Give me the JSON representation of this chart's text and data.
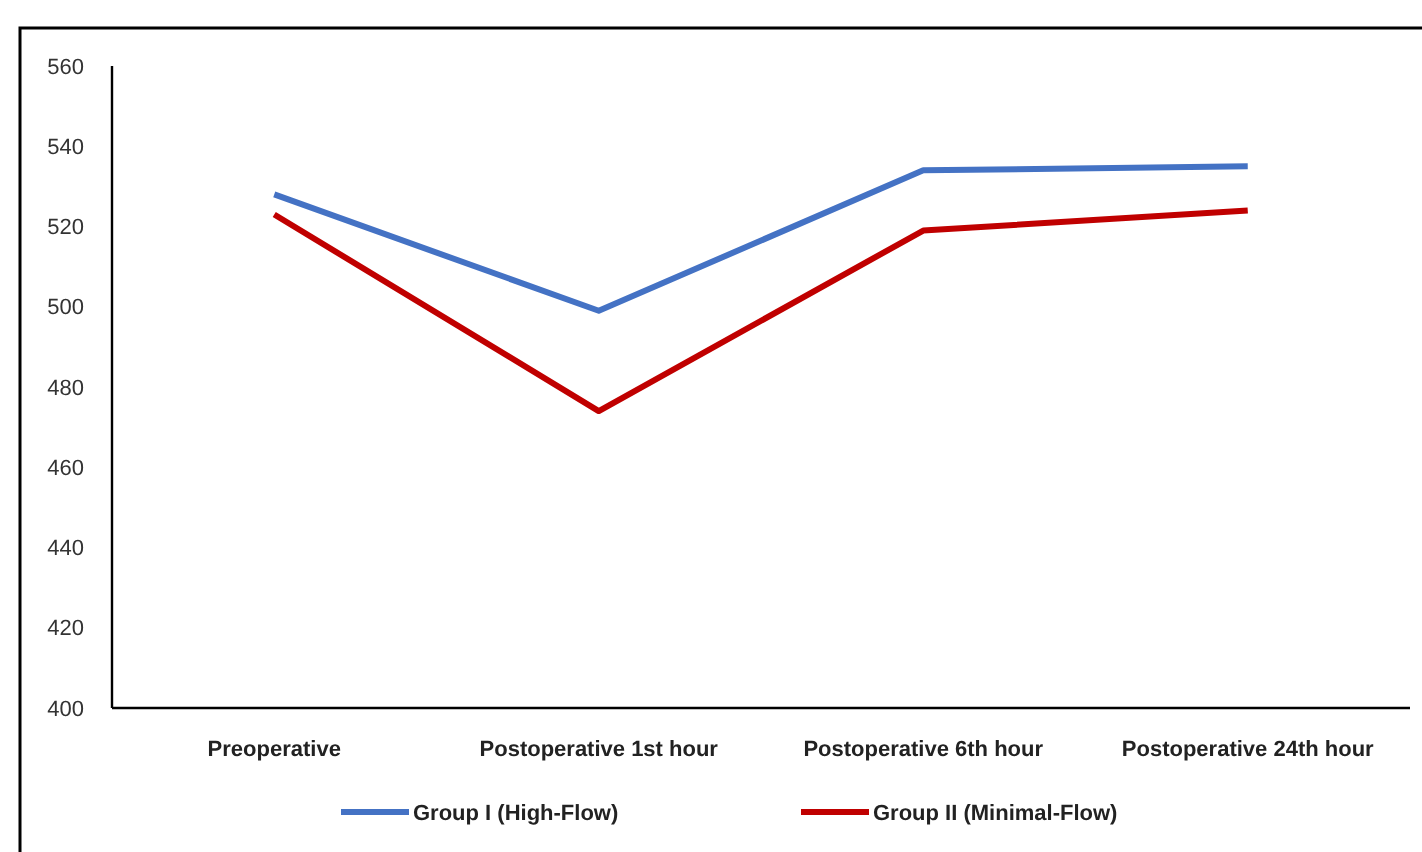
{
  "chart_data": {
    "type": "line",
    "categories": [
      "Preoperative",
      "Postoperative 1st hour",
      "Postoperative 6th hour",
      "Postoperative 24th hour"
    ],
    "series": [
      {
        "name": "Group I (High-Flow)",
        "color": "#4472c4",
        "values": [
          528,
          499,
          534,
          535
        ]
      },
      {
        "name": "Group II (Minimal-Flow)",
        "color": "#c00000",
        "values": [
          523,
          474,
          519,
          524
        ]
      }
    ],
    "ylim": [
      400,
      560
    ],
    "yticks": [
      400,
      420,
      440,
      460,
      480,
      500,
      520,
      540,
      560
    ],
    "grid": false,
    "legend": "bottom",
    "marker": "none",
    "line_style": "solid"
  }
}
